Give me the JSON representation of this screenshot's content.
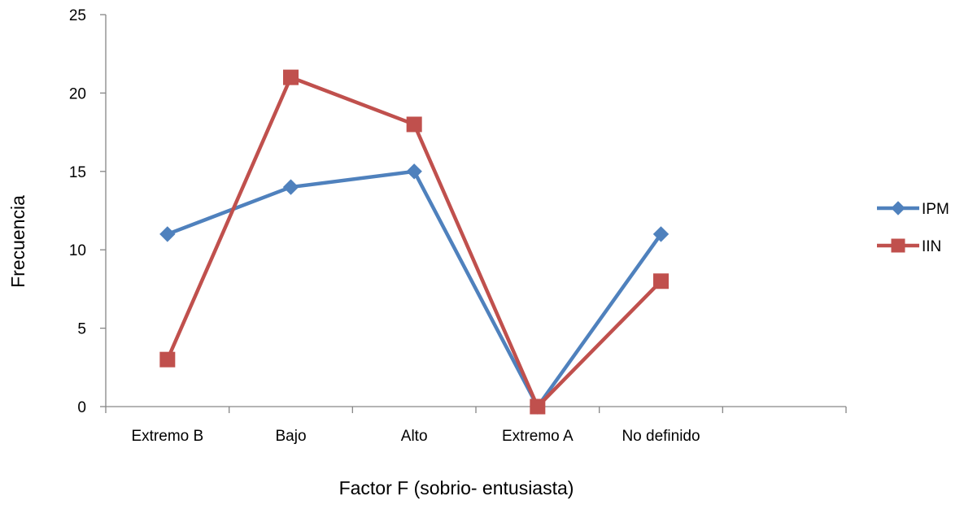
{
  "chart_data": {
    "type": "line",
    "title": "",
    "xlabel": "Factor F (sobrio- entusiasta)",
    "ylabel": "Frecuencia",
    "categories": [
      "Extremo B",
      "Bajo",
      "Alto",
      "Extremo A",
      "No definido"
    ],
    "y_ticks": [
      "0",
      "5",
      "10",
      "15",
      "20",
      "25"
    ],
    "ylim": [
      0,
      25
    ],
    "grid": false,
    "legend_position": "right",
    "series": [
      {
        "name": "IPM",
        "values": [
          11,
          14,
          15,
          0,
          11
        ],
        "color": "#4F81BD",
        "marker": "diamond"
      },
      {
        "name": "IIN",
        "values": [
          3,
          21,
          18,
          0,
          8
        ],
        "color": "#C0504D",
        "marker": "square"
      }
    ]
  }
}
